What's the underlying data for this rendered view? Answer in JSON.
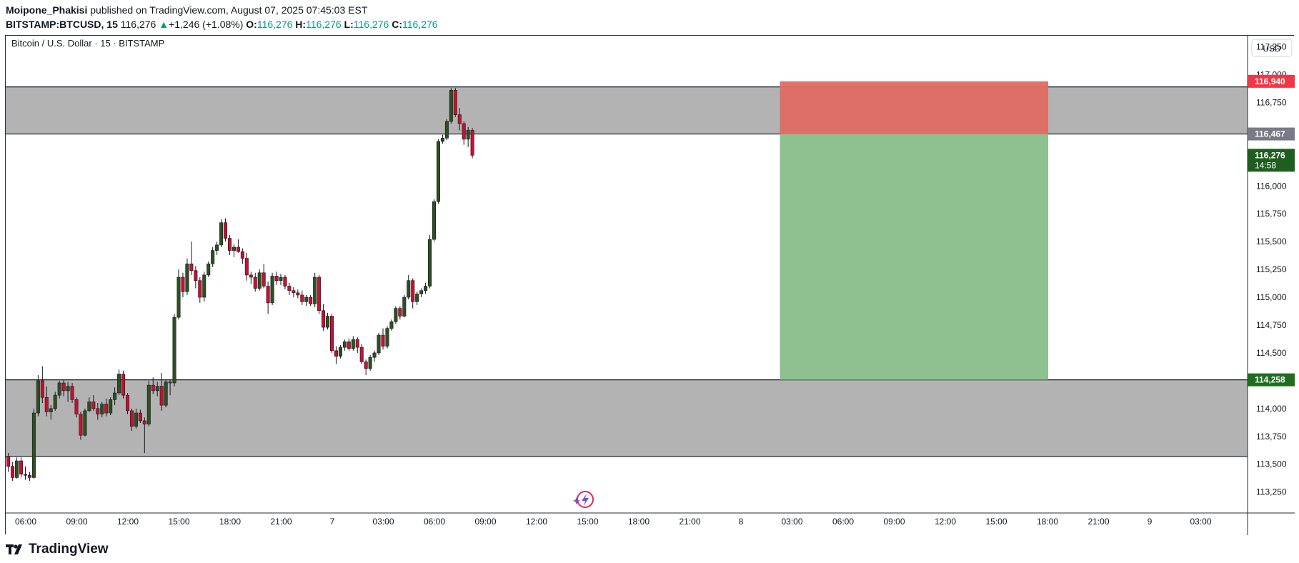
{
  "header": {
    "author": "Moipone_Phakisi",
    "published_text": "published on TradingView.com, August 07, 2025 07:45:03 EST",
    "symbol": "BITSTAMP:BTCUSD, 15",
    "price": "116,276",
    "change_arrow": "▲",
    "change": "+1,246 (+1.08%)",
    "o_label": "O:",
    "o_value": "116,276",
    "h_label": "H:",
    "h_value": "116,276",
    "l_label": "L:",
    "l_value": "116,276",
    "c_label": "C:",
    "c_value": "116,276"
  },
  "footer": {
    "brand": "TradingView"
  },
  "colors": {
    "up": "#089981",
    "down": "#f23645",
    "candle_up_body": "#2f4f1f",
    "candle_down_body": "#c8102e",
    "zone": "#b3b3b3",
    "risk": "#e06b62",
    "reward": "#8fc08f",
    "current_badge": "#1e5e1e",
    "gray_badge": "#787b86",
    "red_badge": "#f23645",
    "green_badge": "#1e6e1e"
  },
  "chart_data": {
    "type": "candlestick",
    "title": "Bitcoin / U.S. Dollar · 15 · BITSTAMP",
    "currency": "USD",
    "ylim": [
      113100,
      117350
    ],
    "y_ticks": [
      {
        "value": 117250,
        "label": "117,250"
      },
      {
        "value": 117000,
        "label": "117,000"
      },
      {
        "value": 116750,
        "label": "116,750"
      },
      {
        "value": 116000,
        "label": "116,000"
      },
      {
        "value": 115750,
        "label": "115,750"
      },
      {
        "value": 115500,
        "label": "115,500"
      },
      {
        "value": 115250,
        "label": "115,250"
      },
      {
        "value": 115000,
        "label": "115,000"
      },
      {
        "value": 114750,
        "label": "114,750"
      },
      {
        "value": 114500,
        "label": "114,500"
      },
      {
        "value": 114000,
        "label": "114,000"
      },
      {
        "value": 113750,
        "label": "113,750"
      },
      {
        "value": 113500,
        "label": "113,500"
      },
      {
        "value": 113250,
        "label": "113,250"
      }
    ],
    "x_labels": [
      "06:00",
      "09:00",
      "12:00",
      "15:00",
      "18:00",
      "21:00",
      "7",
      "03:00",
      "06:00",
      "09:00",
      "12:00",
      "15:00",
      "18:00",
      "21:00",
      "8",
      "03:00",
      "06:00",
      "09:00",
      "12:00",
      "15:00",
      "18:00",
      "21:00",
      "9",
      "03:00"
    ],
    "zones": [
      {
        "top": 116890,
        "bottom": 116467
      },
      {
        "top": 114258,
        "bottom": 113570
      }
    ],
    "position": {
      "type": "short",
      "entry": 116467,
      "stop": 116940,
      "target": 114258,
      "start_time": "03:00",
      "end_time": "18:00"
    },
    "price_badges": [
      {
        "value": 116940,
        "label": "116,940",
        "color": "#f23645"
      },
      {
        "value": 116467,
        "label": "116,467",
        "color": "#787b86"
      },
      {
        "value": 114258,
        "label": "114,258",
        "color": "#1e6e1e"
      }
    ],
    "current": {
      "value": 116276,
      "label": "116,276",
      "countdown": "14:58"
    },
    "ohlc": [
      [
        113570,
        113600,
        113430,
        113480
      ],
      [
        113480,
        113520,
        113350,
        113380
      ],
      [
        113380,
        113560,
        113370,
        113530
      ],
      [
        113530,
        113560,
        113380,
        113410
      ],
      [
        113410,
        113480,
        113360,
        113400
      ],
      [
        113400,
        113430,
        113350,
        113380
      ],
      [
        113380,
        114000,
        113370,
        113960
      ],
      [
        113960,
        114300,
        113930,
        114250
      ],
      [
        114250,
        114380,
        114050,
        114100
      ],
      [
        114100,
        114200,
        113930,
        113970
      ],
      [
        113970,
        114030,
        113900,
        114000
      ],
      [
        114000,
        114150,
        113980,
        114120
      ],
      [
        114120,
        114250,
        114090,
        114230
      ],
      [
        114230,
        114260,
        114110,
        114160
      ],
      [
        114160,
        114240,
        114060,
        114200
      ],
      [
        114200,
        114230,
        114050,
        114080
      ],
      [
        114080,
        114100,
        113920,
        113950
      ],
      [
        113950,
        113970,
        113720,
        113760
      ],
      [
        113760,
        114000,
        113750,
        113980
      ],
      [
        113980,
        114100,
        113970,
        114060
      ],
      [
        114060,
        114120,
        113980,
        114000
      ],
      [
        114000,
        114050,
        113900,
        113950
      ],
      [
        113950,
        114060,
        113920,
        114040
      ],
      [
        114040,
        114090,
        113930,
        113960
      ],
      [
        113960,
        114100,
        113940,
        114080
      ],
      [
        114080,
        114190,
        114030,
        114140
      ],
      [
        114140,
        114350,
        114120,
        114310
      ],
      [
        114310,
        114340,
        114090,
        114120
      ],
      [
        114120,
        114140,
        113950,
        113980
      ],
      [
        113980,
        114000,
        113800,
        113840
      ],
      [
        113840,
        114000,
        113820,
        113960
      ],
      [
        113960,
        113990,
        113870,
        113890
      ],
      [
        113890,
        113920,
        113600,
        113860
      ],
      [
        113860,
        114250,
        113840,
        114210
      ],
      [
        114210,
        114280,
        114130,
        114160
      ],
      [
        114160,
        114240,
        114110,
        114200
      ],
      [
        114200,
        114320,
        113980,
        114030
      ],
      [
        114030,
        114260,
        114010,
        114240
      ],
      [
        114240,
        114260,
        114120,
        114230
      ],
      [
        114230,
        114850,
        114200,
        114820
      ],
      [
        114820,
        115250,
        114800,
        115180
      ],
      [
        115180,
        115220,
        115000,
        115050
      ],
      [
        115050,
        115350,
        115020,
        115300
      ],
      [
        115300,
        115500,
        115200,
        115240
      ],
      [
        115240,
        115280,
        115080,
        115150
      ],
      [
        115150,
        115180,
        114950,
        115000
      ],
      [
        115000,
        115230,
        114960,
        115200
      ],
      [
        115200,
        115320,
        115180,
        115300
      ],
      [
        115300,
        115450,
        115270,
        115420
      ],
      [
        115420,
        115500,
        115380,
        115470
      ],
      [
        115470,
        115700,
        115450,
        115670
      ],
      [
        115670,
        115710,
        115500,
        115530
      ],
      [
        115530,
        115560,
        115380,
        115420
      ],
      [
        115420,
        115480,
        115360,
        115450
      ],
      [
        115450,
        115520,
        115400,
        115410
      ],
      [
        115410,
        115440,
        115300,
        115350
      ],
      [
        115350,
        115400,
        115150,
        115200
      ],
      [
        115200,
        115230,
        115120,
        115180
      ],
      [
        115180,
        115220,
        115050,
        115080
      ],
      [
        115080,
        115250,
        115060,
        115220
      ],
      [
        115220,
        115300,
        115080,
        115100
      ],
      [
        115100,
        115140,
        114850,
        114950
      ],
      [
        114950,
        115220,
        114930,
        115190
      ],
      [
        115190,
        115230,
        115110,
        115150
      ],
      [
        115150,
        115210,
        115110,
        115180
      ],
      [
        115180,
        115200,
        115070,
        115100
      ],
      [
        115100,
        115130,
        115020,
        115060
      ],
      [
        115060,
        115090,
        115000,
        115040
      ],
      [
        115040,
        115070,
        114990,
        115020
      ],
      [
        115020,
        115060,
        114930,
        114960
      ],
      [
        114960,
        115020,
        114920,
        115000
      ],
      [
        115000,
        115020,
        114920,
        114940
      ],
      [
        114940,
        115220,
        114910,
        115180
      ],
      [
        115180,
        115200,
        114850,
        114880
      ],
      [
        114880,
        114940,
        114700,
        114730
      ],
      [
        114730,
        114860,
        114710,
        114830
      ],
      [
        114830,
        114850,
        114500,
        114520
      ],
      [
        114520,
        114560,
        114400,
        114470
      ],
      [
        114470,
        114570,
        114450,
        114550
      ],
      [
        114550,
        114620,
        114520,
        114600
      ],
      [
        114600,
        114630,
        114520,
        114540
      ],
      [
        114540,
        114650,
        114520,
        114620
      ],
      [
        114620,
        114640,
        114500,
        114550
      ],
      [
        114550,
        114580,
        114400,
        114420
      ],
      [
        114420,
        114440,
        114300,
        114360
      ],
      [
        114360,
        114480,
        114340,
        114460
      ],
      [
        114460,
        114520,
        114420,
        114500
      ],
      [
        114500,
        114680,
        114480,
        114660
      ],
      [
        114660,
        114720,
        114530,
        114560
      ],
      [
        114560,
        114740,
        114540,
        114720
      ],
      [
        114720,
        114800,
        114700,
        114780
      ],
      [
        114780,
        114920,
        114760,
        114900
      ],
      [
        114900,
        114920,
        114800,
        114830
      ],
      [
        114830,
        115020,
        114820,
        115000
      ],
      [
        115000,
        115200,
        114980,
        115150
      ],
      [
        115150,
        115170,
        114900,
        114960
      ],
      [
        114960,
        115050,
        114930,
        115030
      ],
      [
        115030,
        115080,
        115000,
        115060
      ],
      [
        115060,
        115130,
        115030,
        115100
      ],
      [
        115100,
        115560,
        115080,
        115520
      ],
      [
        115520,
        115880,
        115500,
        115860
      ],
      [
        115860,
        116420,
        115840,
        116400
      ],
      [
        116400,
        116460,
        116380,
        116430
      ],
      [
        116430,
        116600,
        116410,
        116580
      ],
      [
        116580,
        116880,
        116560,
        116860
      ],
      [
        116860,
        116880,
        116620,
        116640
      ],
      [
        116640,
        116700,
        116500,
        116560
      ],
      [
        116560,
        116580,
        116370,
        116420
      ],
      [
        116420,
        116530,
        116350,
        116500
      ],
      [
        116500,
        116520,
        116250,
        116276
      ]
    ]
  }
}
